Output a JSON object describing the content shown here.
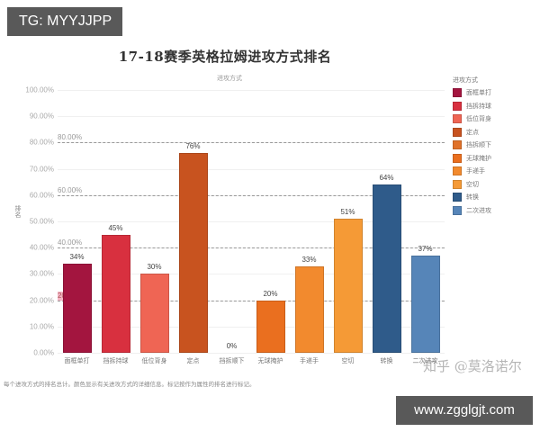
{
  "badges": {
    "tg": "TG: MYYJJPP",
    "url": "www.zgglgjt.com"
  },
  "watermark": "知乎 @莫洛诺尔",
  "footnote": "每个进攻方式的排名总计。颜色显示有关进攻方式的详细信息。标记按作为属性的排名进行标记。",
  "chart_data": {
    "type": "bar",
    "title": "17-18赛季英格拉姆进攻方式排名",
    "subtitle": "进攻方式",
    "xlabel": "",
    "ylabel": "排名",
    "ylim": [
      0,
      100
    ],
    "yticks": [
      "100.00%",
      "90.00%",
      "80.00%",
      "70.00%",
      "60.00%",
      "50.00%",
      "40.00%",
      "30.00%",
      "20.00%",
      "10.00%",
      "0.00%"
    ],
    "ytick_values": [
      100,
      90,
      80,
      70,
      60,
      50,
      40,
      30,
      20,
      10,
      0
    ],
    "grid": true,
    "reference_lines": [
      {
        "value": 80,
        "label": "80.00%",
        "highlight": false
      },
      {
        "value": 60,
        "label": "60.00%",
        "highlight": false
      },
      {
        "value": 40,
        "label": "40.00%",
        "highlight": false
      },
      {
        "value": 20,
        "label": "20.00%",
        "highlight": true
      }
    ],
    "categories": [
      "面框单打",
      "挡拆持球",
      "低位背身",
      "定点",
      "挡拆顺下",
      "无球掩护",
      "手递手",
      "空切",
      "转换",
      "二次进攻"
    ],
    "values": [
      34,
      45,
      30,
      76,
      0,
      20,
      33,
      51,
      64,
      37
    ],
    "value_labels": [
      "34%",
      "45%",
      "30%",
      "76%",
      "0%",
      "20%",
      "33%",
      "51%",
      "64%",
      "37%"
    ],
    "colors": [
      "#a3153f",
      "#d8303f",
      "#ef6554",
      "#c8531f",
      "#e0722a",
      "#ea6f1f",
      "#f28a2e",
      "#f59a36",
      "#2f5b8a",
      "#5685b8"
    ],
    "legend": {
      "title": "进攻方式",
      "position": "right",
      "entries": [
        "面框单打",
        "挡拆持球",
        "低位背身",
        "定点",
        "挡拆顺下",
        "无球掩护",
        "手递手",
        "空切",
        "转换",
        "二次进攻"
      ]
    }
  }
}
